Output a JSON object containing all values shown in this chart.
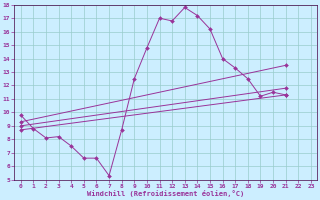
{
  "xlabel": "Windchill (Refroidissement éolien,°C)",
  "bg_color": "#cceeff",
  "grid_color": "#99cccc",
  "line_color": "#993399",
  "xlim": [
    -0.5,
    23.5
  ],
  "ylim": [
    5,
    18
  ],
  "xticks": [
    0,
    1,
    2,
    3,
    4,
    5,
    6,
    7,
    8,
    9,
    10,
    11,
    12,
    13,
    14,
    15,
    16,
    17,
    18,
    19,
    20,
    21,
    22,
    23
  ],
  "yticks": [
    5,
    6,
    7,
    8,
    9,
    10,
    11,
    12,
    13,
    14,
    15,
    16,
    17,
    18
  ],
  "curve1_x": [
    0,
    1,
    2,
    3,
    4,
    5,
    6,
    7,
    8,
    9,
    10,
    11,
    12,
    13,
    14,
    15,
    16,
    17,
    18,
    19,
    20,
    21
  ],
  "curve1_y": [
    9.8,
    8.8,
    8.1,
    8.2,
    7.5,
    6.6,
    6.6,
    5.3,
    8.7,
    12.5,
    14.8,
    17.0,
    16.8,
    17.8,
    17.2,
    16.2,
    14.0,
    13.3,
    12.5,
    11.2,
    11.5,
    11.3
  ],
  "line2_x": [
    0,
    21
  ],
  "line2_y": [
    9.3,
    13.5
  ],
  "line3_x": [
    0,
    21
  ],
  "line3_y": [
    9.0,
    11.8
  ],
  "line4_x": [
    0,
    21
  ],
  "line4_y": [
    8.7,
    11.3
  ]
}
